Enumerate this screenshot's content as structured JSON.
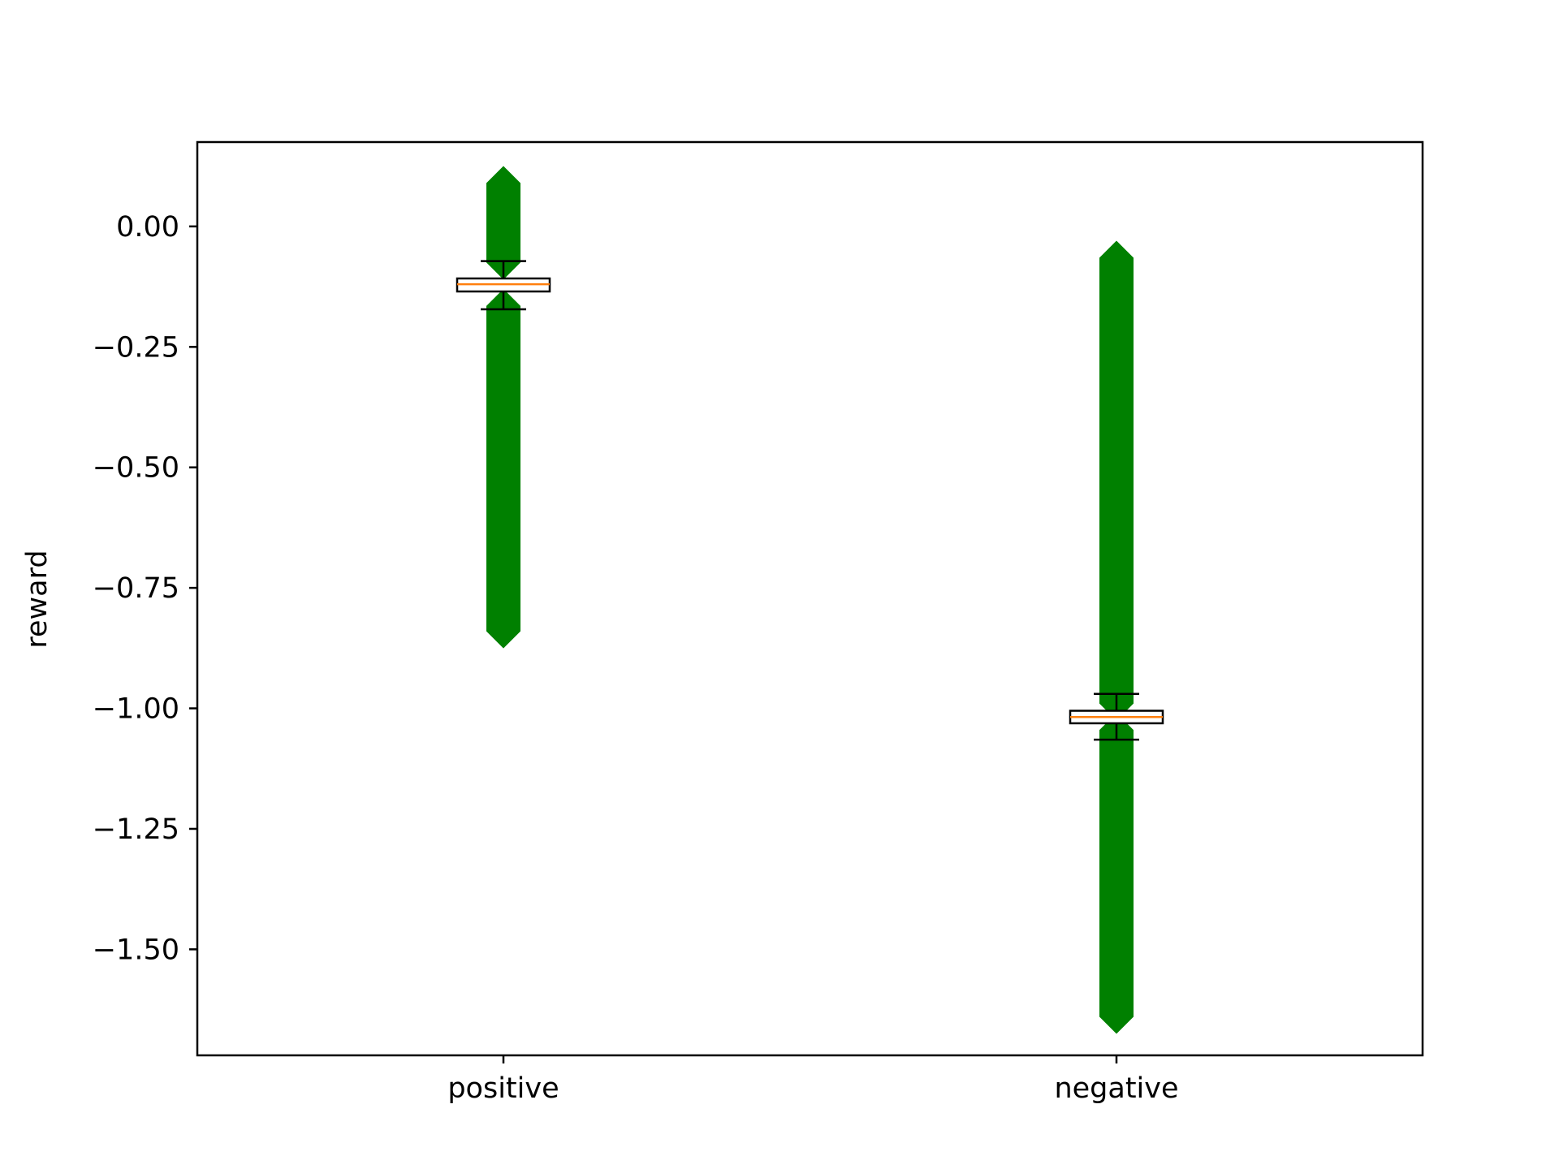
{
  "chart_data": {
    "type": "box",
    "categories": [
      "positive",
      "negative"
    ],
    "title": "",
    "xlabel": "",
    "ylabel": "reward",
    "ylim": [
      -1.72,
      0.175
    ],
    "yticks": [
      0.0,
      -0.25,
      -0.5,
      -0.75,
      -1.0,
      -1.25,
      -1.5
    ],
    "ytick_labels": [
      "0.00",
      "−0.25",
      "−0.50",
      "−0.75",
      "−1.00",
      "−1.25",
      "−1.50"
    ],
    "grid": false,
    "boxes": [
      {
        "category": "positive",
        "q1": -0.135,
        "median": -0.12,
        "q3": -0.108,
        "whisker_low": -0.172,
        "whisker_high": -0.072,
        "outliers_high_range": [
          -0.075,
          0.09
        ],
        "outliers_low_range": [
          -0.84,
          -0.165
        ]
      },
      {
        "category": "negative",
        "q1": -1.031,
        "median": -1.018,
        "q3": -1.005,
        "whisker_low": -1.065,
        "whisker_high": -0.97,
        "outliers_high_range": [
          -0.99,
          -0.065
        ],
        "outliers_low_range": [
          -1.64,
          -1.045
        ]
      }
    ],
    "colors": {
      "outlier": "#008000",
      "median": "#ff7f0e",
      "box": "#000000"
    }
  }
}
